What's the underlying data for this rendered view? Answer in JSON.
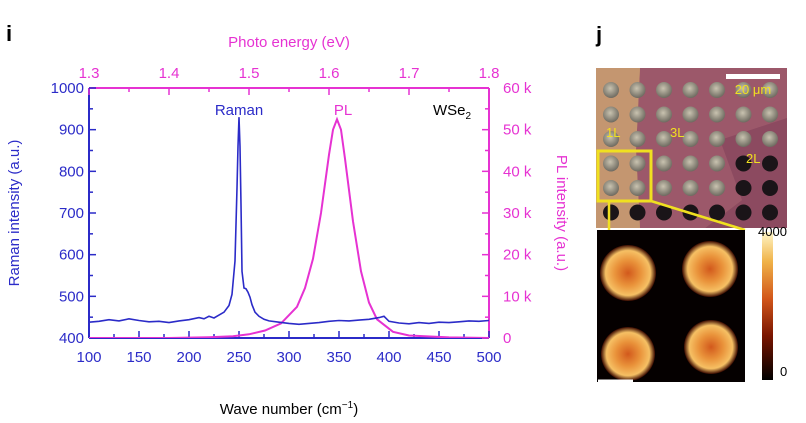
{
  "panels": {
    "i_label": "i",
    "j_label": "j"
  },
  "chart_data": [
    {
      "type": "line",
      "annotation": "WSe2",
      "annotation_main": "WSe",
      "annotation_sub": "2",
      "xlabel": "Wave number (cm",
      "xlabel_sup": "−1",
      "xlabel_close": ")",
      "xlim": [
        100,
        500
      ],
      "x_ticks": [
        "100",
        "150",
        "200",
        "250",
        "300",
        "350",
        "400",
        "450",
        "500"
      ],
      "x2label": "Photo energy (eV)",
      "x2lim": [
        1.3,
        1.8
      ],
      "x2_ticks": [
        "1.3",
        "1.4",
        "1.5",
        "1.6",
        "1.7",
        "1.8"
      ],
      "ylabel": "Raman intensity (a.u.)",
      "ylim": [
        400,
        1000
      ],
      "y_ticks": [
        "400",
        "500",
        "600",
        "700",
        "800",
        "900",
        "1000"
      ],
      "y2label": "PL intensity (a.u.)",
      "y2lim": [
        0,
        60000
      ],
      "y2_ticks": [
        "0",
        "10 k",
        "20 k",
        "30 k",
        "40 k",
        "50 k",
        "60 k"
      ],
      "colors": {
        "raman": "#2b2bc8",
        "pl": "#e632d2"
      },
      "series": [
        {
          "name": "Raman",
          "axis": "x/y",
          "x": [
            100,
            110,
            120,
            130,
            140,
            150,
            160,
            170,
            180,
            190,
            200,
            210,
            215,
            220,
            225,
            230,
            235,
            240,
            243,
            246,
            248,
            249,
            250,
            251,
            252,
            253,
            255,
            257,
            259,
            261,
            263,
            266,
            270,
            275,
            280,
            290,
            300,
            310,
            320,
            330,
            340,
            350,
            360,
            370,
            380,
            390,
            395,
            400,
            410,
            420,
            430,
            440,
            450,
            460,
            470,
            480,
            490,
            500
          ],
          "y": [
            438,
            440,
            444,
            441,
            446,
            442,
            439,
            440,
            437,
            441,
            444,
            449,
            446,
            452,
            448,
            455,
            462,
            478,
            505,
            585,
            760,
            860,
            930,
            860,
            720,
            560,
            520,
            518,
            510,
            498,
            480,
            462,
            452,
            445,
            441,
            438,
            435,
            433,
            435,
            437,
            440,
            442,
            441,
            443,
            445,
            449,
            452,
            440,
            436,
            434,
            437,
            435,
            438,
            437,
            439,
            441,
            440,
            442
          ]
        },
        {
          "name": "PL",
          "axis": "x2/y2",
          "energy": [
            1.3,
            1.35,
            1.4,
            1.45,
            1.48,
            1.5,
            1.52,
            1.54,
            1.56,
            1.57,
            1.58,
            1.59,
            1.6,
            1.605,
            1.61,
            1.615,
            1.62,
            1.63,
            1.64,
            1.65,
            1.66,
            1.68,
            1.7,
            1.75,
            1.8
          ],
          "intensity": [
            0,
            0,
            0,
            200,
            400,
            900,
            1800,
            3500,
            7500,
            12000,
            19000,
            30000,
            44000,
            50000,
            52500,
            50000,
            43000,
            28000,
            16000,
            8500,
            4500,
            1500,
            600,
            150,
            0
          ]
        }
      ]
    }
  ],
  "optical_image": {
    "scale_bar_label": "20 μm",
    "layer_labels": [
      "1L",
      "3L",
      "2L"
    ]
  },
  "pl_map": {
    "colorbar_max": "4000",
    "colorbar_min": "0"
  }
}
